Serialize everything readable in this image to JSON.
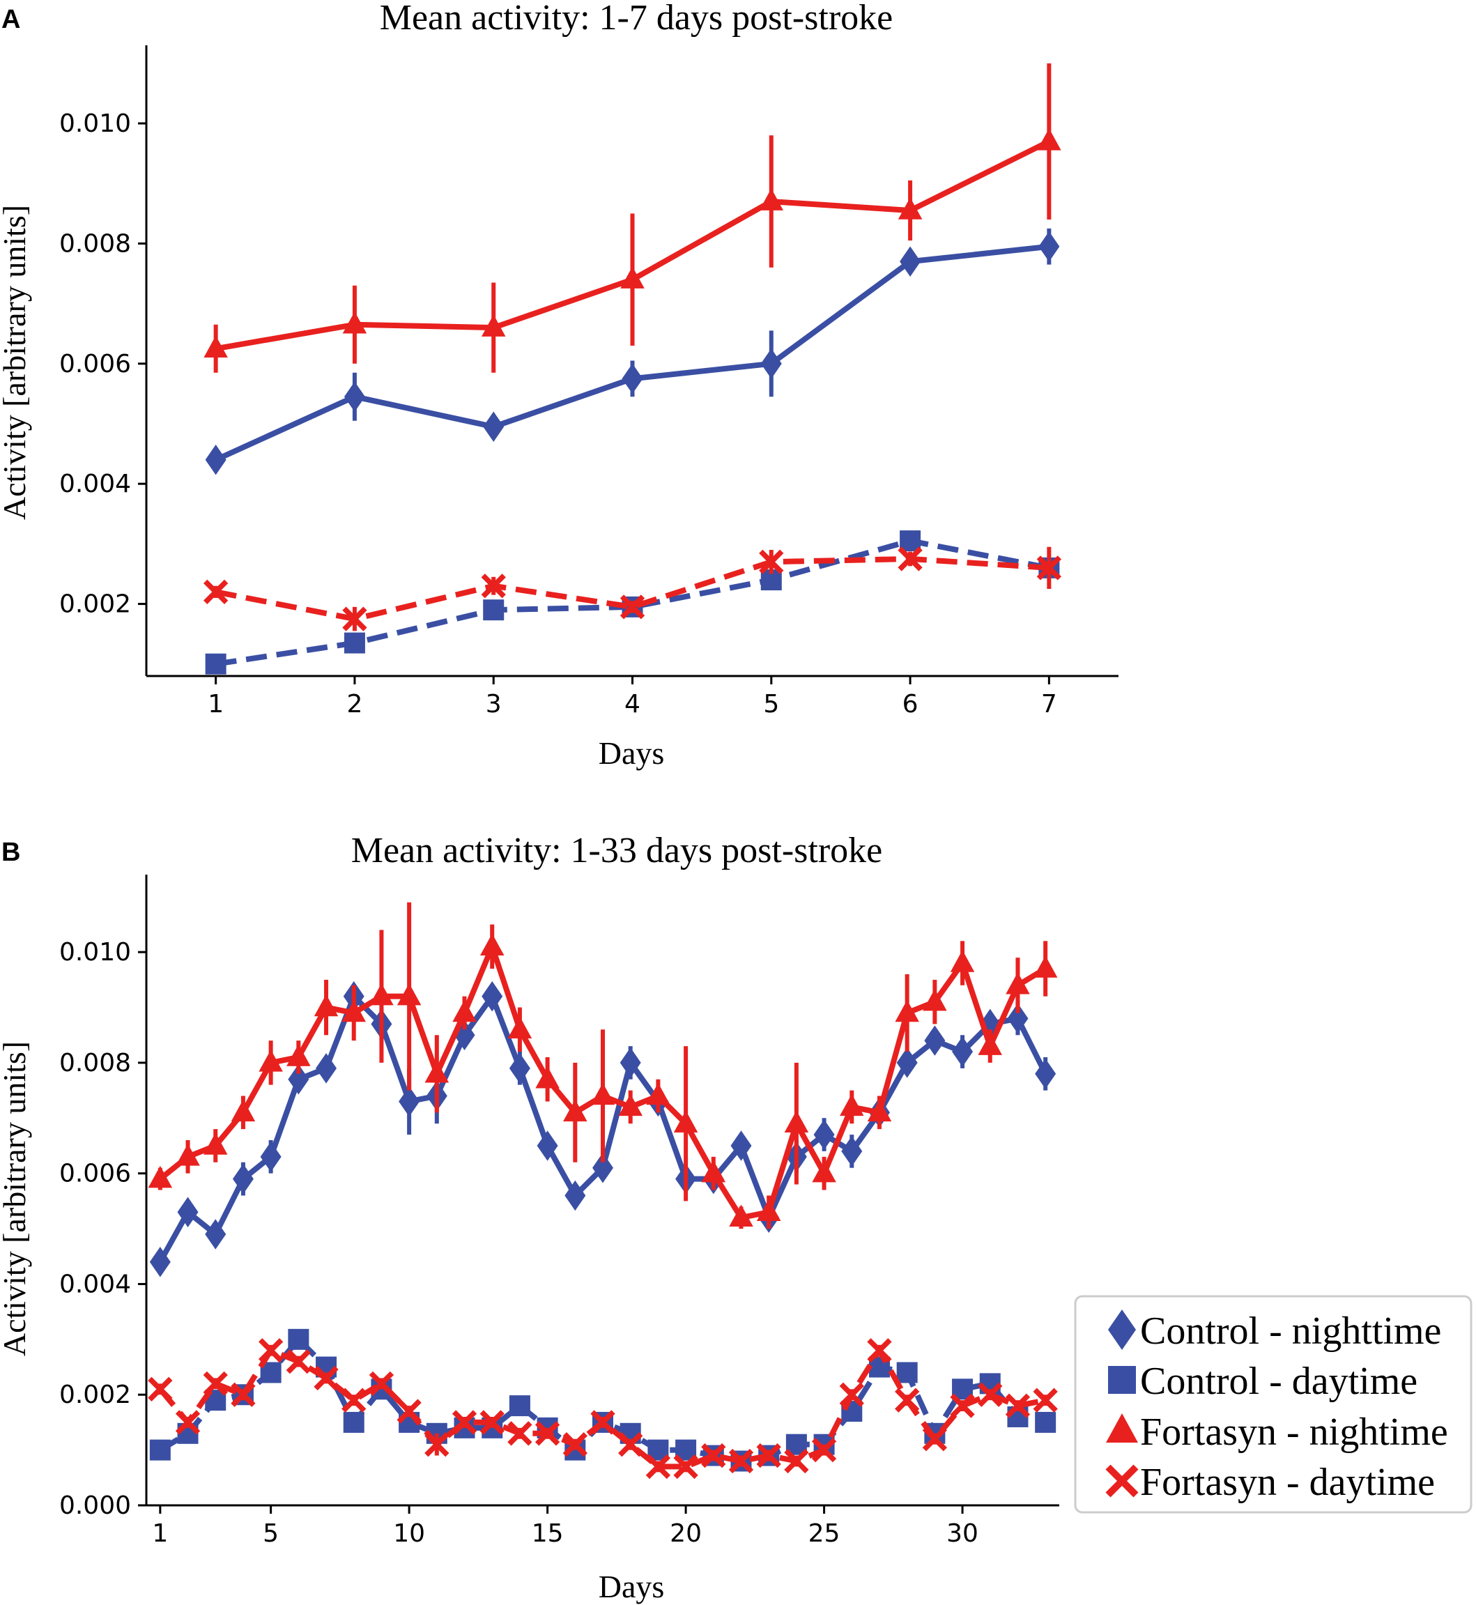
{
  "colors": {
    "control": "#3a4fa3",
    "fortasyn": "#e8211f"
  },
  "chart_data": [
    {
      "panel": "A",
      "type": "line",
      "title": "Mean activity: 1-7 days post-stroke",
      "xlabel": "Days",
      "ylabel": "Activity [arbitrary units]",
      "xlim": [
        0.5,
        7.5
      ],
      "ylim": [
        0.0008,
        0.0113
      ],
      "xticks": [
        1,
        2,
        3,
        4,
        5,
        6,
        7
      ],
      "xtick_labels": [
        "1",
        "2",
        "3",
        "4",
        "5",
        "6",
        "7"
      ],
      "yticks": [
        0.002,
        0.004,
        0.006,
        0.008,
        0.01
      ],
      "ytick_labels": [
        "0.002",
        "0.004",
        "0.006",
        "0.008",
        "0.010"
      ],
      "x": [
        1,
        2,
        3,
        4,
        5,
        6,
        7
      ],
      "series": [
        {
          "name": "Control - nighttime",
          "group": "control",
          "marker": "diamond",
          "dashed": false,
          "values": [
            0.0044,
            0.00545,
            0.00495,
            0.00575,
            0.006,
            0.0077,
            0.00795
          ],
          "errors": [
            0.0002,
            0.0004,
            0.00015,
            0.0003,
            0.00055,
            0.0002,
            0.0003
          ]
        },
        {
          "name": "Control - daytime",
          "group": "control",
          "marker": "square",
          "dashed": true,
          "values": [
            0.001,
            0.00135,
            0.0019,
            0.00195,
            0.0024,
            0.00305,
            0.0026
          ],
          "errors": [
            5e-05,
            0.0001,
            8e-05,
            8e-05,
            0.00012,
            0.00012,
            0.00012
          ]
        },
        {
          "name": "Fortasyn - nightime",
          "group": "fortasyn",
          "marker": "triangle",
          "dashed": false,
          "values": [
            0.00625,
            0.00665,
            0.0066,
            0.0074,
            0.0087,
            0.00855,
            0.0097
          ],
          "errors": [
            0.0004,
            0.00065,
            0.00075,
            0.0011,
            0.0011,
            0.0005,
            0.0013
          ]
        },
        {
          "name": "Fortasyn - daytime",
          "group": "fortasyn",
          "marker": "x",
          "dashed": true,
          "values": [
            0.0022,
            0.00175,
            0.0023,
            0.00195,
            0.0027,
            0.00275,
            0.0026
          ],
          "errors": [
            0.0001,
            0.0002,
            0.00015,
            0.0001,
            0.0002,
            0.00012,
            0.00035
          ]
        }
      ]
    },
    {
      "panel": "B",
      "type": "line",
      "title": "Mean activity: 1-33 days post-stroke",
      "xlabel": "Days",
      "ylabel": "Activity [arbitrary units]",
      "xlim": [
        0.5,
        33.5
      ],
      "ylim": [
        0,
        0.0114
      ],
      "xticks": [
        1,
        5,
        10,
        15,
        20,
        25,
        30
      ],
      "xtick_labels": [
        "1",
        "5",
        "10",
        "15",
        "20",
        "25",
        "30"
      ],
      "yticks": [
        0,
        0.002,
        0.004,
        0.006,
        0.008,
        0.01
      ],
      "ytick_labels": [
        "0.000",
        "0.002",
        "0.004",
        "0.006",
        "0.008",
        "0.010"
      ],
      "x": [
        1,
        2,
        3,
        4,
        5,
        6,
        7,
        8,
        9,
        10,
        11,
        12,
        13,
        14,
        15,
        16,
        17,
        18,
        19,
        20,
        21,
        22,
        23,
        24,
        25,
        26,
        27,
        28,
        29,
        30,
        31,
        32,
        33
      ],
      "series": [
        {
          "name": "Control - nighttime",
          "group": "control",
          "marker": "diamond",
          "dashed": false,
          "values": [
            0.0044,
            0.0053,
            0.0049,
            0.0059,
            0.0063,
            0.0077,
            0.0079,
            0.0092,
            0.0087,
            0.0073,
            0.0074,
            0.0085,
            0.0092,
            0.0079,
            0.0065,
            0.0056,
            0.0061,
            0.008,
            0.0073,
            0.0059,
            0.0059,
            0.0065,
            0.0052,
            0.0063,
            0.0067,
            0.0064,
            0.0071,
            0.008,
            0.0084,
            0.0082,
            0.0087,
            0.0088,
            0.0078
          ],
          "errors": [
            0.0002,
            0.0002,
            0.0002,
            0.0003,
            0.0003,
            0.0002,
            0.0002,
            0.0002,
            0.0003,
            0.0006,
            0.0005,
            0.0002,
            0.0002,
            0.0003,
            0.0002,
            0.0002,
            0.0002,
            0.0003,
            0.0002,
            0.0002,
            0.0002,
            0.0002,
            0.0002,
            0.0003,
            0.0003,
            0.0003,
            0.0002,
            0.0002,
            0.0002,
            0.0003,
            0.0002,
            0.0003,
            0.0003
          ]
        },
        {
          "name": "Control - daytime",
          "group": "control",
          "marker": "square",
          "dashed": true,
          "values": [
            0.001,
            0.0013,
            0.0019,
            0.002,
            0.0024,
            0.003,
            0.0025,
            0.0015,
            0.0021,
            0.0015,
            0.0013,
            0.0014,
            0.0014,
            0.0018,
            0.0014,
            0.001,
            0.0015,
            0.0013,
            0.001,
            0.001,
            0.0009,
            0.0008,
            0.0009,
            0.0011,
            0.0011,
            0.0017,
            0.0025,
            0.0024,
            0.0013,
            0.0021,
            0.0022,
            0.0016,
            0.0015
          ],
          "errors": [
            0.0001,
            0.0001,
            0.0001,
            0.0001,
            0.0001,
            0.0001,
            0.0001,
            0.0001,
            0.0001,
            0.0001,
            0.0001,
            0.0001,
            0.0001,
            0.0001,
            0.0001,
            0.0001,
            0.0001,
            0.0001,
            0.0001,
            0.0001,
            0.0001,
            0.0001,
            0.0001,
            0.0001,
            0.0001,
            0.0001,
            0.0001,
            0.0001,
            0.0001,
            0.0001,
            0.0001,
            0.0001,
            0.0001
          ]
        },
        {
          "name": "Fortasyn - nightime",
          "group": "fortasyn",
          "marker": "triangle",
          "dashed": false,
          "values": [
            0.0059,
            0.0063,
            0.0065,
            0.0071,
            0.008,
            0.0081,
            0.009,
            0.0089,
            0.0092,
            0.0092,
            0.0078,
            0.0089,
            0.0101,
            0.0086,
            0.0077,
            0.0071,
            0.0074,
            0.0072,
            0.0074,
            0.0069,
            0.006,
            0.0052,
            0.0053,
            0.0069,
            0.006,
            0.0072,
            0.0071,
            0.0089,
            0.0091,
            0.0098,
            0.0083,
            0.0094,
            0.0097
          ],
          "errors": [
            0.0002,
            0.0003,
            0.0003,
            0.0003,
            0.0004,
            0.0003,
            0.0005,
            0.0005,
            0.0012,
            0.0017,
            0.0007,
            0.0003,
            0.0004,
            0.0004,
            0.0004,
            0.0009,
            0.0012,
            0.0003,
            0.0003,
            0.0014,
            0.0003,
            0.0002,
            0.0003,
            0.0011,
            0.0003,
            0.0003,
            0.0003,
            0.0007,
            0.0004,
            0.0004,
            0.0003,
            0.0005,
            0.0005
          ]
        },
        {
          "name": "Fortasyn - daytime",
          "group": "fortasyn",
          "marker": "x",
          "dashed": true,
          "values": [
            0.0021,
            0.0015,
            0.0022,
            0.002,
            0.0028,
            0.0026,
            0.0023,
            0.0019,
            0.0022,
            0.0017,
            0.0011,
            0.0015,
            0.0015,
            0.0013,
            0.0013,
            0.0011,
            0.0015,
            0.0011,
            0.0007,
            0.0007,
            0.0009,
            0.0008,
            0.0009,
            0.0008,
            0.001,
            0.002,
            0.0028,
            0.0019,
            0.0012,
            0.0018,
            0.002,
            0.0018,
            0.0019
          ],
          "errors": [
            0.0001,
            0.0001,
            0.0001,
            0.0001,
            0.0001,
            0.0001,
            0.0001,
            0.0001,
            0.0001,
            0.0001,
            0.0002,
            0.0001,
            0.0001,
            0.0001,
            0.0001,
            0.0001,
            0.0001,
            0.0001,
            0.0001,
            0.0001,
            0.0001,
            0.0001,
            0.0001,
            0.0001,
            0.0001,
            0.0001,
            0.0001,
            0.0001,
            0.0001,
            0.0001,
            0.0001,
            0.0001,
            0.0001
          ]
        }
      ]
    }
  ],
  "legend": {
    "placement": "right of panel B",
    "items": [
      {
        "label": "Control - nighttime",
        "group": "control",
        "marker": "diamond"
      },
      {
        "label": "Control - daytime",
        "group": "control",
        "marker": "square"
      },
      {
        "label": "Fortasyn - nightime",
        "group": "fortasyn",
        "marker": "triangle"
      },
      {
        "label": "Fortasyn - daytime",
        "group": "fortasyn",
        "marker": "x"
      }
    ]
  }
}
